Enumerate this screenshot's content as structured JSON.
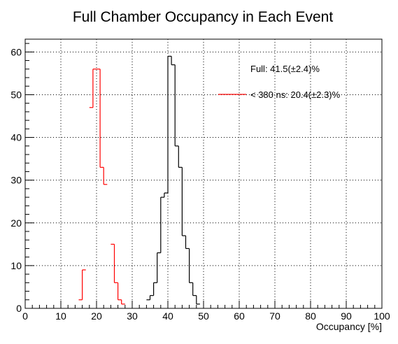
{
  "chart_data": {
    "type": "histogram",
    "title": "Full Chamber Occupancy in Each Event",
    "xlabel": "Occupancy [%]",
    "ylabel": "",
    "xlim": [
      0,
      100
    ],
    "ylim": [
      0,
      63
    ],
    "bin_width": 1,
    "x_ticks": [
      0,
      10,
      20,
      30,
      40,
      50,
      60,
      70,
      80,
      90,
      100
    ],
    "y_ticks": [
      0,
      10,
      20,
      30,
      40,
      50,
      60
    ],
    "grid": true,
    "legend_position": "top-right",
    "series": [
      {
        "name": "Full: 41.5(±2.4)%",
        "color": "#000000",
        "bins": [
          {
            "x": 34,
            "y": 2
          },
          {
            "x": 35,
            "y": 3
          },
          {
            "x": 36,
            "y": 6
          },
          {
            "x": 37,
            "y": 13
          },
          {
            "x": 38,
            "y": 26
          },
          {
            "x": 39,
            "y": 27
          },
          {
            "x": 40,
            "y": 59
          },
          {
            "x": 41,
            "y": 57
          },
          {
            "x": 42,
            "y": 38
          },
          {
            "x": 43,
            "y": 33
          },
          {
            "x": 44,
            "y": 17
          },
          {
            "x": 45,
            "y": 14
          },
          {
            "x": 46,
            "y": 6
          },
          {
            "x": 47,
            "y": 3
          },
          {
            "x": 48,
            "y": 1
          }
        ]
      },
      {
        "name": "< 380 ns: 20.4(±2.3)%",
        "color": "#ff0000",
        "bins": [
          {
            "x": 15,
            "y": 2
          },
          {
            "x": 16,
            "y": 9
          },
          {
            "x": 18,
            "y": 47
          },
          {
            "x": 19,
            "y": 56
          },
          {
            "x": 20,
            "y": 56
          },
          {
            "x": 21,
            "y": 33
          },
          {
            "x": 22,
            "y": 29
          },
          {
            "x": 24,
            "y": 15
          },
          {
            "x": 25,
            "y": 6
          },
          {
            "x": 26,
            "y": 2
          },
          {
            "x": 27,
            "y": 1
          }
        ]
      }
    ]
  }
}
